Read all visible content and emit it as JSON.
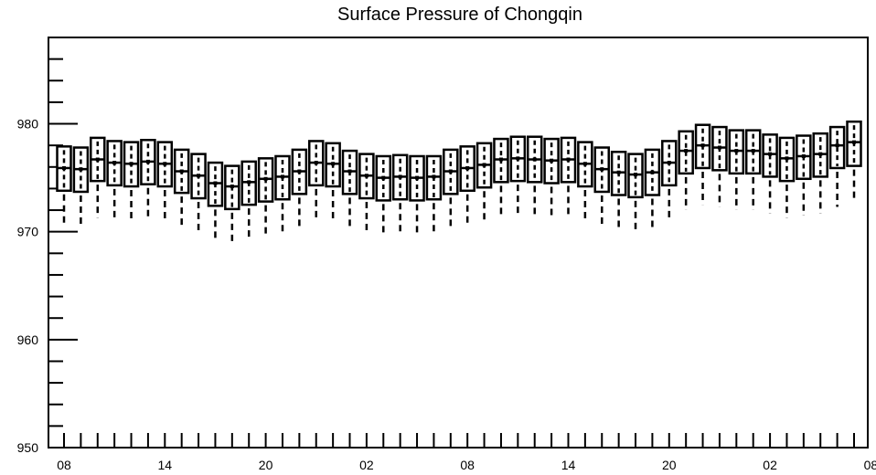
{
  "chart_data": {
    "type": "boxplot",
    "title": "Surface Pressure of Chongqin",
    "xlabel": "",
    "ylabel": "",
    "ylim": [
      950,
      988
    ],
    "y_ticks": [
      950,
      960,
      970,
      980
    ],
    "x_tick_labels": [
      "08",
      "14",
      "20",
      "02",
      "08",
      "14",
      "20",
      "02",
      "08"
    ],
    "grid": false,
    "legend": "none",
    "series": [
      {
        "q1": [
          973.8,
          973.7,
          974.7,
          974.3,
          974.2,
          974.4,
          974.2,
          973.6,
          973.1,
          972.4,
          972.1,
          972.5,
          972.8,
          973.0,
          973.5,
          974.3,
          974.2,
          973.5,
          973.1,
          972.9,
          973.0,
          972.9,
          973.0,
          973.5,
          973.8,
          974.1,
          974.6,
          974.7,
          974.6,
          974.5,
          974.6,
          974.2,
          973.7,
          973.4,
          973.2,
          973.4,
          974.3,
          975.4,
          975.9,
          975.7,
          975.4,
          975.4,
          975.1,
          974.7,
          974.9,
          975.1,
          975.9,
          976.1
        ],
        "median": [
          975.9,
          975.8,
          976.7,
          976.4,
          976.3,
          976.5,
          976.3,
          975.6,
          975.2,
          974.5,
          974.2,
          974.6,
          974.9,
          975.1,
          975.6,
          976.4,
          976.3,
          975.6,
          975.2,
          975.0,
          975.1,
          975.0,
          975.1,
          975.6,
          975.9,
          976.2,
          976.7,
          976.8,
          976.7,
          976.6,
          976.7,
          976.3,
          975.8,
          975.5,
          975.3,
          975.5,
          976.4,
          977.5,
          978.0,
          977.8,
          977.5,
          977.5,
          977.2,
          976.8,
          977.0,
          977.2,
          978.0,
          978.3
        ],
        "q3": [
          977.9,
          977.8,
          978.7,
          978.4,
          978.3,
          978.5,
          978.3,
          977.6,
          977.2,
          976.4,
          976.1,
          976.5,
          976.8,
          977.0,
          977.6,
          978.4,
          978.2,
          977.5,
          977.2,
          977.0,
          977.1,
          977.0,
          977.0,
          977.6,
          977.9,
          978.2,
          978.6,
          978.8,
          978.8,
          978.6,
          978.7,
          978.3,
          977.8,
          977.4,
          977.2,
          977.6,
          978.4,
          979.3,
          979.9,
          979.7,
          979.4,
          979.4,
          979.0,
          978.7,
          978.9,
          979.1,
          979.7,
          980.2
        ],
        "whisker_low": [
          970.5,
          970.4,
          971.3,
          971.0,
          970.9,
          971.1,
          970.9,
          970.3,
          969.9,
          969.1,
          968.8,
          969.2,
          969.5,
          969.7,
          970.3,
          971.1,
          970.9,
          970.3,
          969.9,
          969.7,
          969.8,
          969.7,
          969.7,
          970.3,
          970.6,
          970.9,
          971.3,
          971.5,
          971.4,
          971.3,
          971.3,
          970.9,
          970.5,
          970.1,
          969.9,
          970.2,
          971.1,
          972.0,
          972.5,
          972.3,
          972.0,
          972.0,
          971.7,
          971.3,
          971.5,
          971.7,
          972.3,
          972.8
        ],
        "mean_markers": true
      }
    ]
  }
}
